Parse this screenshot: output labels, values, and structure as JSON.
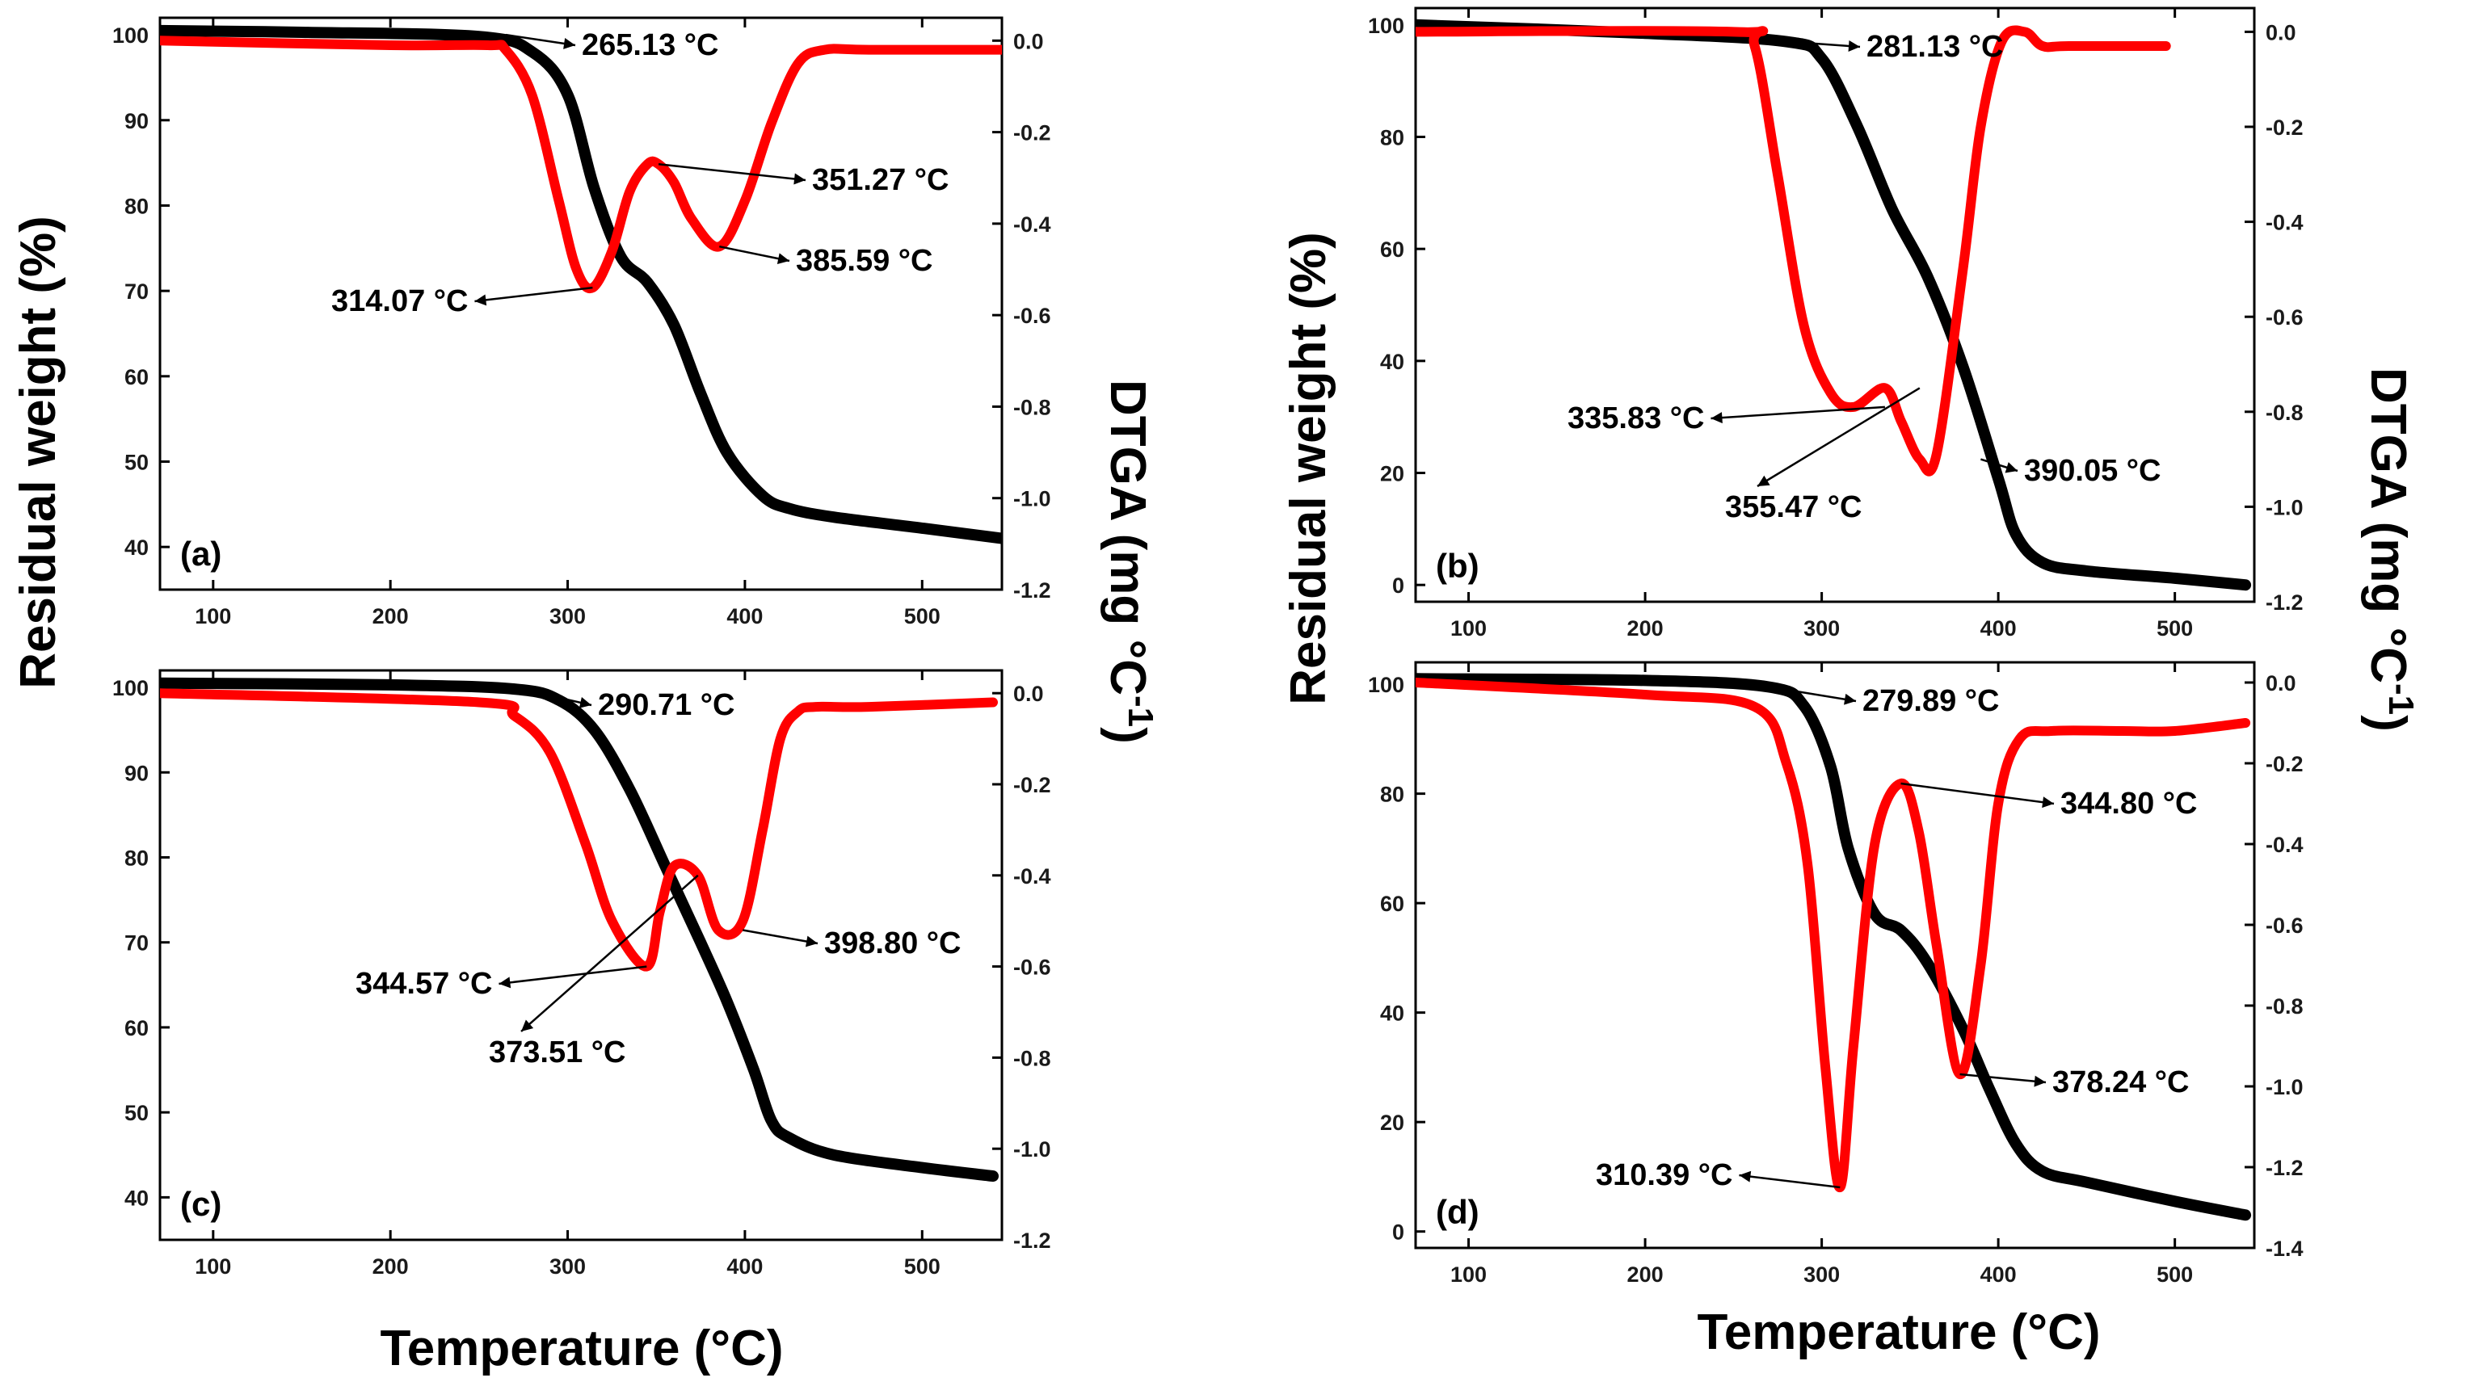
{
  "chart_data": [
    {
      "type": "line",
      "panel_label": "(a)",
      "xlabel": "Temperature (°C)",
      "ylabel": "Residual weight (%)",
      "y2label": "DTGA (mg °C-1)",
      "xlim": [
        70,
        545
      ],
      "ylim": [
        35,
        102
      ],
      "y2lim": [
        -1.2,
        0.05
      ],
      "x_ticks": [
        "100",
        "200",
        "300",
        "400",
        "500"
      ],
      "y_ticks": [
        "40",
        "50",
        "60",
        "70",
        "80",
        "90",
        "100"
      ],
      "y2_ticks": [
        "-1.2",
        "-1.0",
        "-0.8",
        "-0.6",
        "-0.4",
        "-0.2",
        "0.0"
      ],
      "series": [
        {
          "name": "TGA",
          "axis": "left",
          "color": "#000000",
          "x": [
            70,
            150,
            250,
            280,
            300,
            315,
            330,
            345,
            360,
            375,
            390,
            410,
            425,
            450,
            500,
            545
          ],
          "y": [
            100.5,
            100.3,
            99.8,
            98,
            93,
            82,
            74,
            71,
            66,
            58,
            51,
            46,
            44.5,
            43.5,
            42.2,
            41
          ]
        },
        {
          "name": "DTGA",
          "axis": "right",
          "color": "#ff0000",
          "x": [
            70,
            200,
            255,
            265,
            280,
            295,
            305,
            314.07,
            325,
            335,
            345,
            351.27,
            360,
            370,
            385.59,
            400,
            415,
            430,
            445,
            470,
            545
          ],
          "y": [
            0.0,
            -0.01,
            -0.01,
            -0.02,
            -0.12,
            -0.35,
            -0.5,
            -0.54,
            -0.46,
            -0.33,
            -0.27,
            -0.27,
            -0.31,
            -0.39,
            -0.45,
            -0.35,
            -0.18,
            -0.05,
            -0.02,
            -0.02,
            -0.02
          ]
        }
      ],
      "annotations": [
        {
          "text": "265.13 °C",
          "x": 265.13,
          "axis": "left",
          "y": 100
        },
        {
          "text": "351.27 °C",
          "x": 351.27,
          "axis": "right",
          "y": -0.27
        },
        {
          "text": "385.59 °C",
          "x": 385.59,
          "axis": "right",
          "y": -0.45
        },
        {
          "text": "314.07 °C",
          "x": 314.07,
          "axis": "right",
          "y": -0.54
        }
      ]
    },
    {
      "type": "line",
      "panel_label": "(b)",
      "xlabel": "Temperature (°C)",
      "ylabel": "Residual weight (%)",
      "y2label": "DTGA (mg °C-1)",
      "xlim": [
        70,
        545
      ],
      "ylim": [
        -3,
        103
      ],
      "y2lim": [
        -1.2,
        0.05
      ],
      "x_ticks": [
        "100",
        "200",
        "300",
        "400",
        "500"
      ],
      "y_ticks": [
        "0",
        "20",
        "40",
        "60",
        "80",
        "100"
      ],
      "y2_ticks": [
        "-1.2",
        "-1.0",
        "-0.8",
        "-0.6",
        "-0.4",
        "-0.2",
        "0.0"
      ],
      "series": [
        {
          "name": "TGA",
          "axis": "left",
          "color": "#000000",
          "x": [
            70,
            200,
            280,
            300,
            320,
            340,
            360,
            380,
            400,
            410,
            425,
            450,
            500,
            540
          ],
          "y": [
            100,
            98.5,
            97,
            94,
            82,
            67,
            55,
            39,
            19,
            9,
            4,
            2.5,
            1.2,
            0
          ]
        },
        {
          "name": "DTGA",
          "axis": "right",
          "color": "#ff0000",
          "x": [
            70,
            250,
            262,
            275,
            290,
            305,
            318,
            335.83,
            345,
            355.47,
            365,
            380,
            390.05,
            402,
            415,
            425,
            440,
            495
          ],
          "y": [
            0.0,
            0.0,
            -0.03,
            -0.3,
            -0.62,
            -0.76,
            -0.79,
            -0.75,
            -0.82,
            -0.9,
            -0.89,
            -0.5,
            -0.2,
            -0.02,
            0.0,
            -0.03,
            -0.03,
            -0.03
          ]
        }
      ],
      "annotations": [
        {
          "text": "281.13 °C",
          "x": 281.13,
          "axis": "left",
          "y": 97
        },
        {
          "text": "335.83 °C",
          "x": 335.83,
          "axis": "right",
          "y": -0.79
        },
        {
          "text": "355.47 °C",
          "x": 355.47,
          "axis": "right",
          "y": -0.75
        },
        {
          "text": "390.05 °C",
          "x": 390.05,
          "axis": "right",
          "y": -0.9
        }
      ]
    },
    {
      "type": "line",
      "panel_label": "(c)",
      "xlabel": "Temperature (°C)",
      "ylabel": "Residual weight (%)",
      "y2label": "DTGA (mg °C-1)",
      "xlim": [
        70,
        545
      ],
      "ylim": [
        35,
        102
      ],
      "y2lim": [
        -1.2,
        0.05
      ],
      "x_ticks": [
        "100",
        "200",
        "300",
        "400",
        "500"
      ],
      "y_ticks": [
        "40",
        "50",
        "60",
        "70",
        "80",
        "90",
        "100"
      ],
      "y2_ticks": [
        "-1.2",
        "-1.0",
        "-0.8",
        "-0.6",
        "-0.4",
        "-0.2",
        "0.0"
      ],
      "series": [
        {
          "name": "TGA",
          "axis": "left",
          "color": "#000000",
          "x": [
            70,
            200,
            270,
            295,
            315,
            335,
            355,
            375,
            390,
            405,
            415,
            425,
            450,
            500,
            540
          ],
          "y": [
            100.5,
            100.3,
            99.8,
            98.5,
            95,
            88,
            79,
            70,
            63,
            55,
            49,
            47,
            45,
            43.5,
            42.5
          ]
        },
        {
          "name": "DTGA",
          "axis": "right",
          "color": "#ff0000",
          "x": [
            70,
            250,
            270,
            290,
            310,
            325,
            344.57,
            352,
            360,
            373.51,
            385,
            398.8,
            410,
            420,
            430,
            440,
            470,
            540
          ],
          "y": [
            0.0,
            -0.02,
            -0.05,
            -0.13,
            -0.33,
            -0.5,
            -0.6,
            -0.48,
            -0.38,
            -0.4,
            -0.52,
            -0.5,
            -0.3,
            -0.1,
            -0.04,
            -0.03,
            -0.03,
            -0.02
          ]
        }
      ],
      "annotations": [
        {
          "text": "290.71 °C",
          "x": 290.71,
          "axis": "left",
          "y": 99
        },
        {
          "text": "344.57 °C",
          "x": 344.57,
          "axis": "right",
          "y": -0.6
        },
        {
          "text": "373.51 °C",
          "x": 373.51,
          "axis": "right",
          "y": -0.4
        },
        {
          "text": "398.80 °C",
          "x": 398.8,
          "axis": "right",
          "y": -0.52
        }
      ]
    },
    {
      "type": "line",
      "panel_label": "(d)",
      "xlabel": "Temperature (°C)",
      "ylabel": "Residual weight (%)",
      "y2label": "DTGA (mg °C-1)",
      "xlim": [
        70,
        545
      ],
      "ylim": [
        -3,
        104
      ],
      "y2lim": [
        -1.4,
        0.05
      ],
      "x_ticks": [
        "100",
        "200",
        "300",
        "400",
        "500"
      ],
      "y_ticks": [
        "0",
        "20",
        "40",
        "60",
        "80",
        "100"
      ],
      "y2_ticks": [
        "-1.4",
        "-1.2",
        "-1.0",
        "-0.8",
        "-0.6",
        "-0.4",
        "-0.2",
        "0.0"
      ],
      "series": [
        {
          "name": "TGA",
          "axis": "left",
          "color": "#000000",
          "x": [
            70,
            200,
            270,
            290,
            305,
            315,
            330,
            345,
            360,
            380,
            395,
            410,
            425,
            450,
            500,
            540
          ],
          "y": [
            101,
            100.7,
            99.5,
            96,
            85,
            70,
            58,
            55,
            49,
            37,
            26,
            16,
            11,
            9,
            5.5,
            3
          ]
        },
        {
          "name": "DTGA",
          "axis": "right",
          "color": "#ff0000",
          "x": [
            70,
            200,
            262,
            280,
            292,
            302,
            310.39,
            318,
            330,
            344.8,
            355,
            365,
            378.24,
            390,
            400,
            412,
            430,
            470,
            500,
            540
          ],
          "y": [
            0.0,
            -0.03,
            -0.06,
            -0.2,
            -0.45,
            -0.95,
            -1.25,
            -0.9,
            -0.4,
            -0.25,
            -0.37,
            -0.65,
            -0.97,
            -0.7,
            -0.3,
            -0.14,
            -0.12,
            -0.12,
            -0.12,
            -0.1
          ]
        }
      ],
      "annotations": [
        {
          "text": "279.89 °C",
          "x": 279.89,
          "axis": "left",
          "y": 99
        },
        {
          "text": "344.80 °C",
          "x": 344.8,
          "axis": "right",
          "y": -0.25
        },
        {
          "text": "378.24 °C",
          "x": 378.24,
          "axis": "right",
          "y": -0.97
        },
        {
          "text": "310.39 °C",
          "x": 310.39,
          "axis": "right",
          "y": -1.25
        }
      ]
    }
  ],
  "labels": {
    "ylabel_left": "Residual weight (%)",
    "ylabel_right": "Residual weight (%)",
    "y2label_main": "DTGA (mg °C",
    "y2label_sup": "-1",
    "y2label_close": ")",
    "xlabel_left": "Temperature (°C)",
    "xlabel_right": "Temperature (°C)"
  }
}
